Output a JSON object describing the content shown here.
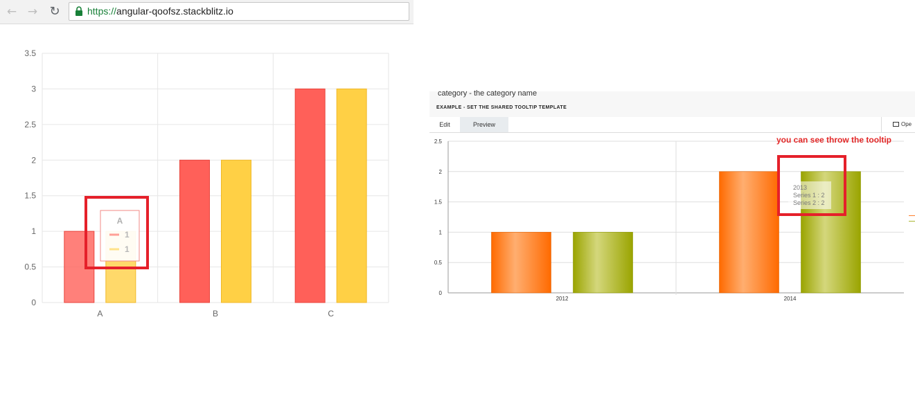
{
  "browser": {
    "back_icon": "back-arrow-icon",
    "forward_icon": "forward-arrow-icon",
    "reload_icon": "reload-icon",
    "lock_icon": "lock-icon",
    "url_scheme": "https://",
    "url_host": "angular-qoofsz.stackblitz.io"
  },
  "doc": {
    "text": "category - the category name",
    "example_title": "EXAMPLE - SET THE SHARED TOOLTIP TEMPLATE",
    "tabs": {
      "edit": "Edit",
      "preview": "Preview"
    },
    "open_label": "Ope"
  },
  "annotation": {
    "text": "you can see throw the tooltip",
    "color": "#e5202a"
  },
  "chart_data": [
    {
      "type": "bar",
      "categories": [
        "A",
        "B",
        "C"
      ],
      "series": [
        {
          "values": [
            1,
            2,
            3
          ],
          "color": "#ff6059"
        },
        {
          "values": [
            1,
            2,
            3
          ],
          "color": "#ffd045"
        }
      ],
      "ylim": [
        0,
        3.5
      ],
      "yticks": [
        "0",
        "0.5",
        "1",
        "1.5",
        "2",
        "2.5",
        "3",
        "3.5"
      ],
      "grid": true,
      "tooltip": {
        "title": "A",
        "values": [
          "1",
          "1"
        ]
      }
    },
    {
      "type": "bar",
      "categories": [
        "2012",
        "2014"
      ],
      "series": [
        {
          "name": "Series 1",
          "values": [
            1,
            2
          ],
          "color": "#ff7f2a"
        },
        {
          "name": "Series 2",
          "values": [
            1,
            2
          ],
          "color": "#a9b631"
        }
      ],
      "ylim": [
        0,
        2.5
      ],
      "yticks": [
        "0",
        "0.5",
        "1",
        "1.5",
        "2",
        "2.5"
      ],
      "grid": true,
      "tooltip": {
        "title": "2013",
        "lines": [
          "Series 1 : 2",
          "Series 2 : 2"
        ]
      }
    }
  ]
}
